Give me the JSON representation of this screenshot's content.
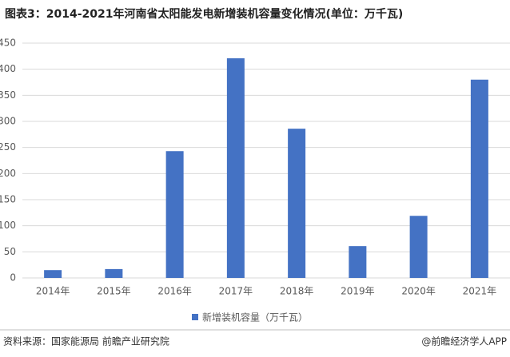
{
  "chart_data": {
    "type": "bar",
    "title": "图表3：2014-2021年河南省太阳能发电新增装机容量变化情况(单位：万千瓦)",
    "categories": [
      "2014年",
      "2015年",
      "2016年",
      "2017年",
      "2018年",
      "2019年",
      "2020年",
      "2021年"
    ],
    "series": [
      {
        "name": "新增装机容量（万千瓦）",
        "color": "#4472c4",
        "values": [
          15,
          17,
          243,
          421,
          286,
          61,
          119,
          380
        ]
      }
    ],
    "ylim": [
      0,
      450
    ],
    "yticks": [
      0,
      50,
      100,
      150,
      200,
      250,
      300,
      350,
      400,
      450
    ],
    "grid": true,
    "legend": "bottom",
    "source": "资料来源：国家能源局 前瞻产业研究院",
    "credit": "@前瞻经济学人APP"
  }
}
